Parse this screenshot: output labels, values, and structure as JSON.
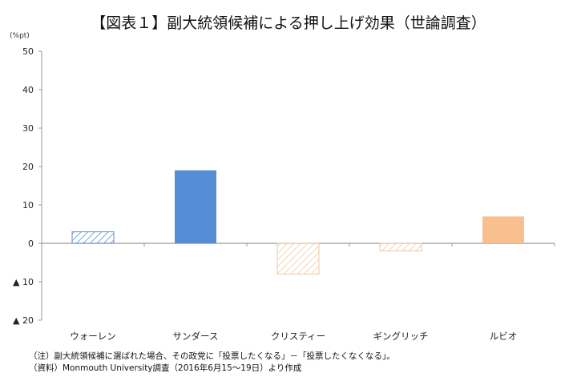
{
  "chart_data": {
    "type": "bar",
    "title": "【図表１】副大統領候補による押し上げ効果（世論調査）",
    "ylabel": "(%pt)",
    "xlabel": "",
    "categories": [
      "ウォーレン",
      "サンダース",
      "クリスティー",
      "ギングリッチ",
      "ルビオ"
    ],
    "values": [
      3,
      19,
      -8,
      -2,
      7
    ],
    "styles": [
      "hatched",
      "solid",
      "hatched",
      "hatched",
      "solid"
    ],
    "colors": [
      "#5b8fc9",
      "#558ed5",
      "#f0c8a0",
      "#f0c8a0",
      "#f8c08e"
    ],
    "ylim": [
      -20,
      50
    ],
    "yticks": [
      50,
      40,
      30,
      20,
      10,
      0,
      -10,
      -20
    ],
    "ytick_labels": [
      "50",
      "40",
      "30",
      "20",
      "10",
      "0",
      "▲ 10",
      "▲ 20"
    ],
    "grid": false
  },
  "notes": {
    "note": "（注）副大統領候補に選ばれた場合、その政党に「投票したくなる」－「投票したくなくなる」。",
    "source": "（資料）Monmouth University調査（2016年6月15～19日）より作成"
  }
}
